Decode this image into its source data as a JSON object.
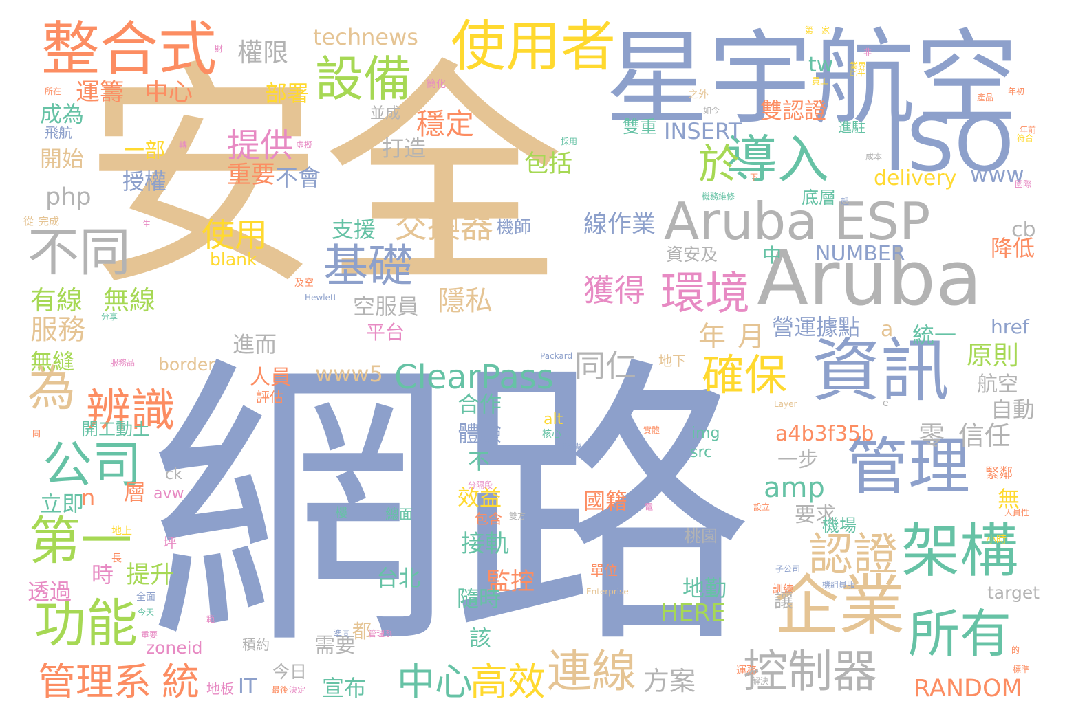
{
  "palette": {
    "tan": "#e5c494",
    "slate": "#8da0cb",
    "grey": "#b3b3b3",
    "salmon": "#fc8d62",
    "green": "#a6d854",
    "yellow": "#ffd92f",
    "teal": "#66c2a5",
    "pink": "#e78ac3"
  },
  "words": [
    {
      "text": "安全",
      "color": "tan"
    },
    {
      "text": "網路",
      "color": "slate"
    },
    {
      "text": "星宇",
      "color": "slate"
    },
    {
      "text": "航空",
      "color": "slate"
    },
    {
      "text": "Aruba",
      "color": "grey"
    },
    {
      "text": "Aruba ESP",
      "color": "grey"
    },
    {
      "text": "ISO",
      "color": "slate"
    },
    {
      "text": "資訊",
      "color": "slate"
    },
    {
      "text": "整合式",
      "color": "salmon"
    },
    {
      "text": "使用者",
      "color": "yellow"
    },
    {
      "text": "設備",
      "color": "green"
    },
    {
      "text": "導入",
      "color": "teal"
    },
    {
      "text": "於",
      "color": "green"
    },
    {
      "text": "不同",
      "color": "grey"
    },
    {
      "text": "管理",
      "color": "slate"
    },
    {
      "text": "環境",
      "color": "pink"
    },
    {
      "text": "基礎",
      "color": "slate"
    },
    {
      "text": "為",
      "color": "tan"
    },
    {
      "text": "辨識",
      "color": "salmon"
    },
    {
      "text": "公司",
      "color": "teal"
    },
    {
      "text": "第一",
      "color": "green"
    },
    {
      "text": "功能",
      "color": "green"
    },
    {
      "text": "企業",
      "color": "tan"
    },
    {
      "text": "架構",
      "color": "teal"
    },
    {
      "text": "所有",
      "color": "teal"
    },
    {
      "text": "認證",
      "color": "tan"
    },
    {
      "text": "確保",
      "color": "yellow"
    },
    {
      "text": "連線",
      "color": "tan"
    },
    {
      "text": "控制器",
      "color": "grey"
    },
    {
      "text": "管理系",
      "color": "salmon"
    },
    {
      "text": "統",
      "color": "salmon"
    },
    {
      "text": "中心",
      "color": "teal"
    },
    {
      "text": "高效",
      "color": "yellow"
    },
    {
      "text": "ClearPass",
      "color": "teal"
    },
    {
      "text": "交換器",
      "color": "tan"
    },
    {
      "text": "提供",
      "color": "pink"
    },
    {
      "text": "運籌",
      "color": "salmon"
    },
    {
      "text": "中心",
      "color": "salmon"
    },
    {
      "text": "權限",
      "color": "grey"
    },
    {
      "text": "technews",
      "color": "tan"
    },
    {
      "text": "部署",
      "color": "yellow"
    },
    {
      "text": "穩定",
      "color": "salmon"
    },
    {
      "text": "雙認證",
      "color": "salmon"
    },
    {
      "text": "INSERT",
      "color": "slate"
    },
    {
      "text": "雙重",
      "color": "teal"
    },
    {
      "text": "www",
      "color": "slate"
    },
    {
      "text": "tw",
      "color": "teal"
    },
    {
      "text": "delivery",
      "color": "yellow"
    },
    {
      "text": "底層",
      "color": "teal"
    },
    {
      "text": "成為",
      "color": "teal"
    },
    {
      "text": "飛航",
      "color": "slate"
    },
    {
      "text": "開始",
      "color": "tan"
    },
    {
      "text": "一部",
      "color": "yellow"
    },
    {
      "text": "授權",
      "color": "slate"
    },
    {
      "text": "重要",
      "color": "salmon"
    },
    {
      "text": "不會",
      "color": "slate"
    },
    {
      "text": "包括",
      "color": "green"
    },
    {
      "text": "打造",
      "color": "grey"
    },
    {
      "text": "並成",
      "color": "grey"
    },
    {
      "text": "php",
      "color": "grey"
    },
    {
      "text": "使用",
      "color": "yellow"
    },
    {
      "text": "blank",
      "color": "yellow"
    },
    {
      "text": "支援",
      "color": "teal"
    },
    {
      "text": "機師",
      "color": "slate"
    },
    {
      "text": "線作業",
      "color": "slate"
    },
    {
      "text": "NUMBER",
      "color": "slate"
    },
    {
      "text": "中",
      "color": "teal"
    },
    {
      "text": "cb",
      "color": "grey"
    },
    {
      "text": "降低",
      "color": "salmon"
    },
    {
      "text": "資安及",
      "color": "grey"
    },
    {
      "text": "有線",
      "color": "green"
    },
    {
      "text": "無線",
      "color": "green"
    },
    {
      "text": "服務",
      "color": "tan"
    },
    {
      "text": "無縫",
      "color": "green"
    },
    {
      "text": "隱私",
      "color": "tan"
    },
    {
      "text": "獲得",
      "color": "pink"
    },
    {
      "text": "空服員",
      "color": "grey"
    },
    {
      "text": "進而",
      "color": "grey"
    },
    {
      "text": "年",
      "color": "tan"
    },
    {
      "text": "月",
      "color": "tan"
    },
    {
      "text": "平台",
      "color": "pink"
    },
    {
      "text": "營運據點",
      "color": "slate"
    },
    {
      "text": "a",
      "color": "tan"
    },
    {
      "text": "統一",
      "color": "teal"
    },
    {
      "text": "href",
      "color": "slate"
    },
    {
      "text": "原則",
      "color": "green"
    },
    {
      "text": "航空",
      "color": "grey"
    },
    {
      "text": "自動",
      "color": "grey"
    },
    {
      "text": "人員",
      "color": "salmon"
    },
    {
      "text": "www5",
      "color": "tan"
    },
    {
      "text": "同仁",
      "color": "grey"
    },
    {
      "text": "border",
      "color": "tan"
    },
    {
      "text": "合作",
      "color": "teal"
    },
    {
      "text": "體驗",
      "color": "slate"
    },
    {
      "text": "a4b3f35b",
      "color": "salmon"
    },
    {
      "text": "零",
      "color": "grey"
    },
    {
      "text": "信任",
      "color": "grey"
    },
    {
      "text": "開工動土",
      "color": "teal"
    },
    {
      "text": "不",
      "color": "teal"
    },
    {
      "text": "效益",
      "color": "yellow"
    },
    {
      "text": "amp",
      "color": "teal"
    },
    {
      "text": "一步",
      "color": "grey"
    },
    {
      "text": "img",
      "color": "teal"
    },
    {
      "text": "src",
      "color": "teal"
    },
    {
      "text": "alt",
      "color": "yellow"
    },
    {
      "text": "n",
      "color": "salmon"
    },
    {
      "text": "層",
      "color": "salmon"
    },
    {
      "text": "立即",
      "color": "teal"
    },
    {
      "text": "avw",
      "color": "pink"
    },
    {
      "text": "ck",
      "color": "grey"
    },
    {
      "text": "國籍",
      "color": "salmon"
    },
    {
      "text": "要求",
      "color": "grey"
    },
    {
      "text": "無",
      "color": "yellow"
    },
    {
      "text": "機場",
      "color": "teal"
    },
    {
      "text": "時",
      "color": "pink"
    },
    {
      "text": "提升",
      "color": "green"
    },
    {
      "text": "接軌",
      "color": "teal"
    },
    {
      "text": "桃園",
      "color": "grey"
    },
    {
      "text": "監控",
      "color": "salmon"
    },
    {
      "text": "台北",
      "color": "teal"
    },
    {
      "text": "地勤",
      "color": "teal"
    },
    {
      "text": "HERE",
      "color": "green"
    },
    {
      "text": "隨時",
      "color": "teal"
    },
    {
      "text": "透過",
      "color": "pink"
    },
    {
      "text": "讓",
      "color": "grey"
    },
    {
      "text": "target",
      "color": "grey"
    },
    {
      "text": "該",
      "color": "teal"
    },
    {
      "text": "都",
      "color": "tan"
    },
    {
      "text": "需要",
      "color": "grey"
    },
    {
      "text": "zoneid",
      "color": "pink"
    },
    {
      "text": "IT",
      "color": "slate"
    },
    {
      "text": "今日",
      "color": "grey"
    },
    {
      "text": "宣布",
      "color": "teal"
    },
    {
      "text": "RANDOM",
      "color": "salmon"
    },
    {
      "text": "方案",
      "color": "grey"
    },
    {
      "text": "Hewlett",
      "color": "slate"
    },
    {
      "text": "Packard",
      "color": "slate"
    },
    {
      "text": "Enterprise",
      "color": "tan"
    },
    {
      "text": "Layer",
      "color": "tan"
    },
    {
      "text": "第一家",
      "color": "yellow"
    },
    {
      "text": "年初",
      "color": "salmon"
    },
    {
      "text": "地下",
      "color": "tan"
    },
    {
      "text": "設立",
      "color": "salmon"
    },
    {
      "text": "機務維修",
      "color": "teal"
    },
    {
      "text": "機組員服",
      "color": "slate"
    },
    {
      "text": "評估",
      "color": "salmon"
    },
    {
      "text": "地上",
      "color": "yellow"
    },
    {
      "text": "坪",
      "color": "pink"
    },
    {
      "text": "樓",
      "color": "teal"
    },
    {
      "text": "總面",
      "color": "teal"
    },
    {
      "text": "包含",
      "color": "salmon"
    },
    {
      "text": "小時",
      "color": "yellow"
    },
    {
      "text": "單位",
      "color": "salmon"
    },
    {
      "text": "之外",
      "color": "tan"
    },
    {
      "text": "如今",
      "color": "grey"
    },
    {
      "text": "進駐",
      "color": "teal"
    },
    {
      "text": "成本",
      "color": "grey"
    },
    {
      "text": "從",
      "color": "tan"
    },
    {
      "text": "完成",
      "color": "tan"
    },
    {
      "text": "今天",
      "color": "teal"
    },
    {
      "text": "解決",
      "color": "grey"
    },
    {
      "text": "地板",
      "color": "pink"
    },
    {
      "text": "最後",
      "color": "salmon"
    },
    {
      "text": "決定",
      "color": "pink"
    },
    {
      "text": "積約",
      "color": "grey"
    },
    {
      "text": "實體",
      "color": "salmon"
    },
    {
      "text": "緊鄰",
      "color": "salmon"
    },
    {
      "text": "國際",
      "color": "pink"
    },
    {
      "text": "簡化",
      "color": "pink"
    },
    {
      "text": "產品",
      "color": "salmon"
    },
    {
      "text": "運務",
      "color": "salmon"
    },
    {
      "text": "雙方",
      "color": "grey"
    },
    {
      "text": "航機",
      "color": "slate"
    },
    {
      "text": "核心",
      "color": "teal"
    },
    {
      "text": "分隔段",
      "color": "pink"
    },
    {
      "text": "及空",
      "color": "salmon"
    },
    {
      "text": "分享",
      "color": "teal"
    },
    {
      "text": "服務品",
      "color": "pink"
    },
    {
      "text": "子公司",
      "color": "slate"
    },
    {
      "text": "訓練",
      "color": "salmon"
    },
    {
      "text": "員工",
      "color": "yellow"
    },
    {
      "text": "一起",
      "color": "slate"
    },
    {
      "text": "採用",
      "color": "teal"
    },
    {
      "text": "管理系",
      "color": "pink"
    },
    {
      "text": "準同",
      "color": "slate"
    },
    {
      "text": "全面",
      "color": "slate"
    },
    {
      "text": "重要",
      "color": "pink"
    },
    {
      "text": "長",
      "color": "salmon"
    },
    {
      "text": "人員性",
      "color": "salmon"
    },
    {
      "text": "虛擬",
      "color": "pink"
    },
    {
      "text": "轉",
      "color": "pink"
    },
    {
      "text": "下",
      "color": "salmon"
    },
    {
      "text": "所在",
      "color": "salmon"
    },
    {
      "text": "生",
      "color": "pink"
    },
    {
      "text": "財",
      "color": "pink"
    },
    {
      "text": "年前",
      "color": "salmon"
    },
    {
      "text": "符合",
      "color": "yellow"
    },
    {
      "text": "標準",
      "color": "salmon"
    },
    {
      "text": "同",
      "color": "salmon"
    },
    {
      "text": "的",
      "color": "salmon"
    },
    {
      "text": "e",
      "color": "grey"
    },
    {
      "text": "範",
      "color": "pink"
    },
    {
      "text": "非",
      "color": "pink"
    },
    {
      "text": "業界",
      "color": "yellow"
    },
    {
      "text": "此平",
      "color": "yellow"
    },
    {
      "text": "電",
      "color": "pink"
    }
  ]
}
